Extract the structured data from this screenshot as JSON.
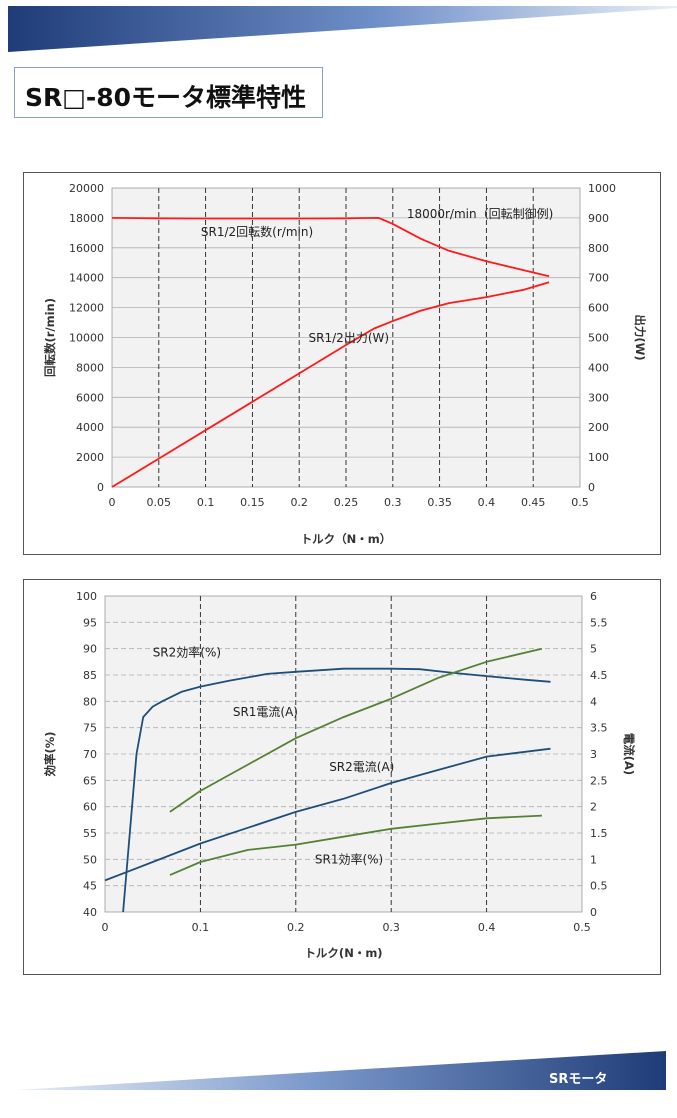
{
  "page": {
    "title": "SR□-80モータ標準特性",
    "footer": "SRモータ"
  },
  "colors": {
    "banner_dark": "#1f3c78",
    "banner_light": "#dfe7f3",
    "red": "#ff1a1a",
    "blue": "#1f4e79",
    "green": "#548235",
    "plot_bg": "#f2f2f2"
  },
  "chart_data": [
    {
      "type": "line",
      "xlabel": "トルク（N・m）",
      "ylabel": "回転数(r/min)",
      "y2label": "出力(W)",
      "xlim": [
        0,
        0.5
      ],
      "ylim": [
        0,
        20000
      ],
      "y2lim": [
        0,
        1000
      ],
      "x_ticks": [
        "0",
        "0.05",
        "0.1",
        "0.15",
        "0.2",
        "0.25",
        "0.3",
        "0.35",
        "0.4",
        "0.45",
        "0.5"
      ],
      "y_ticks": [
        "0",
        "2000",
        "4000",
        "6000",
        "8000",
        "10000",
        "12000",
        "14000",
        "16000",
        "18000",
        "20000"
      ],
      "y2_ticks": [
        "0",
        "100",
        "200",
        "300",
        "400",
        "500",
        "600",
        "700",
        "800",
        "900",
        "1000"
      ],
      "grid": "vertical dashed, horizontal solid",
      "annotations": [
        "18000r/min（回転制御例)"
      ],
      "series": [
        {
          "name": "SR1/2回転数(r/min)",
          "axis": "left",
          "color": "#ff1a1a",
          "x": [
            0,
            0.05,
            0.1,
            0.15,
            0.2,
            0.25,
            0.27,
            0.285,
            0.3,
            0.33,
            0.36,
            0.4,
            0.44,
            0.467
          ],
          "y": [
            18000,
            17970,
            17960,
            17960,
            17960,
            17970,
            17990,
            18000,
            17600,
            16600,
            15800,
            15100,
            14500,
            14100
          ]
        },
        {
          "name": "SR1/2出力(W)",
          "axis": "right",
          "color": "#ff1a1a",
          "x": [
            0,
            0.05,
            0.1,
            0.15,
            0.2,
            0.25,
            0.28,
            0.3,
            0.33,
            0.36,
            0.4,
            0.44,
            0.467
          ],
          "y": [
            0,
            95,
            190,
            285,
            380,
            475,
            530,
            555,
            590,
            615,
            635,
            660,
            685
          ]
        }
      ]
    },
    {
      "type": "line",
      "xlabel": "トルク(N・m)",
      "ylabel": "効率(%)",
      "y2label": "電流(A)",
      "xlim": [
        0,
        0.5
      ],
      "ylim": [
        40,
        100
      ],
      "y2lim": [
        0,
        6
      ],
      "x_ticks": [
        "0",
        "0.1",
        "0.2",
        "0.3",
        "0.4",
        "0.5"
      ],
      "y_ticks": [
        "40",
        "45",
        "50",
        "55",
        "60",
        "65",
        "70",
        "75",
        "80",
        "85",
        "90",
        "95",
        "100"
      ],
      "y2_ticks": [
        "0",
        "0.5",
        "1",
        "1.5",
        "2",
        "2.5",
        "3",
        "3.5",
        "4",
        "4.5",
        "5",
        "5.5",
        "6"
      ],
      "grid": "vertical dashed, horizontal dashed",
      "series": [
        {
          "name": "SR2効率(%)",
          "axis": "left",
          "color": "#1f4e79",
          "x": [
            0.019,
            0.026,
            0.033,
            0.04,
            0.05,
            0.06,
            0.08,
            0.1,
            0.13,
            0.17,
            0.2,
            0.25,
            0.3,
            0.33,
            0.36,
            0.4,
            0.44,
            0.467
          ],
          "y": [
            40,
            55,
            70,
            77,
            79,
            80,
            81.8,
            82.8,
            83.9,
            85.2,
            85.6,
            86.2,
            86.2,
            86.1,
            85.5,
            84.8,
            84.1,
            83.7
          ]
        },
        {
          "name": "SR1電流(A)",
          "axis": "right",
          "color": "#548235",
          "x": [
            0.068,
            0.1,
            0.15,
            0.2,
            0.25,
            0.3,
            0.35,
            0.4,
            0.458
          ],
          "y": [
            1.9,
            2.3,
            2.8,
            3.3,
            3.7,
            4.05,
            4.45,
            4.75,
            5.0
          ]
        },
        {
          "name": "SR2電流(A)",
          "axis": "right",
          "color": "#1f4e79",
          "x": [
            0,
            0.05,
            0.1,
            0.15,
            0.2,
            0.25,
            0.3,
            0.35,
            0.4,
            0.467
          ],
          "y": [
            0.6,
            0.95,
            1.3,
            1.6,
            1.9,
            2.15,
            2.45,
            2.7,
            2.95,
            3.1
          ]
        },
        {
          "name": "SR1効率(%)",
          "axis": "left",
          "color": "#548235",
          "x": [
            0.068,
            0.1,
            0.15,
            0.2,
            0.25,
            0.3,
            0.35,
            0.4,
            0.458
          ],
          "y": [
            47,
            49.5,
            51.8,
            52.8,
            54.3,
            55.8,
            56.8,
            57.8,
            58.3
          ]
        }
      ]
    }
  ]
}
